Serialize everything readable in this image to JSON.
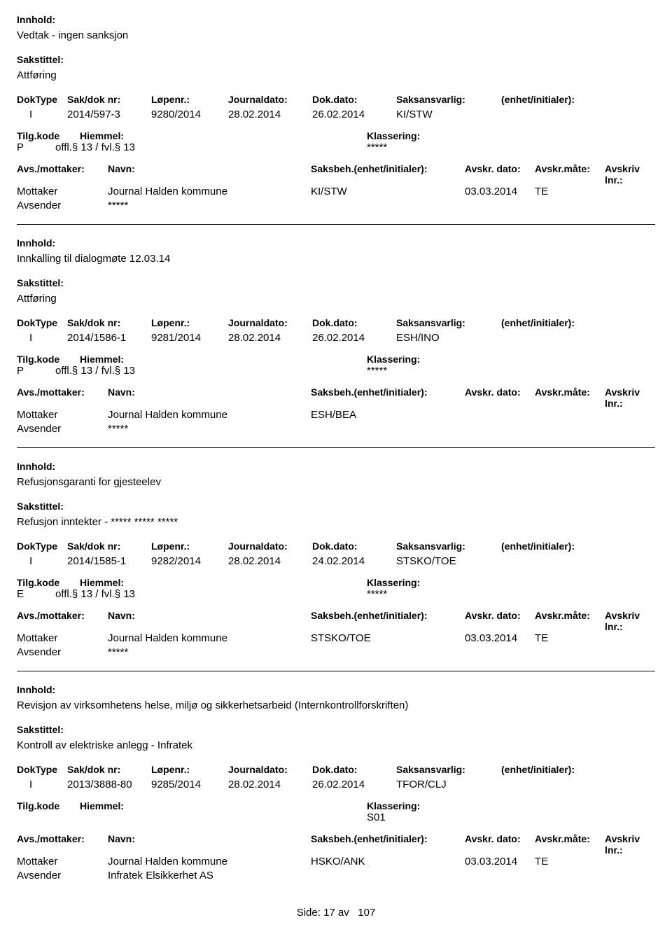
{
  "labels": {
    "innhold": "Innhold:",
    "sakstittel": "Sakstittel:",
    "doktype": "DokType",
    "saknr": "Sak/dok nr:",
    "lopenr": "Løpenr.:",
    "journaldato": "Journaldato:",
    "dokdato": "Dok.dato:",
    "saksansvarlig": "Saksansvarlig:",
    "enhet": "(enhet/initialer):",
    "tilgkode": "Tilg.kode",
    "hjemmel": "Hiemmel:",
    "klassering": "Klassering:",
    "avsmottaker": "Avs./mottaker:",
    "navn": "Navn:",
    "saksbeh": "Saksbeh.(enhet/initialer):",
    "avskrdato": "Avskr. dato:",
    "avskrmate": "Avskr.måte:",
    "avskrivlnr": "Avskriv lnr.:",
    "mottaker": "Mottaker",
    "avsender": "Avsender"
  },
  "footer": {
    "side": "Side:",
    "page": "17",
    "av": "av",
    "total": "107"
  },
  "records": [
    {
      "innhold": "Vedtak - ingen sanksjon",
      "sakstittel": "Attføring",
      "doktype": "I",
      "saknr": "2014/597-3",
      "lopenr": "9280/2014",
      "jdato": "28.02.2014",
      "ddato": "26.02.2014",
      "ansvarlig": "KI/STW",
      "tilgkode": "P",
      "hjemmel": "offl.§ 13 / fvl.§ 13",
      "klassering": "*****",
      "show_party_header": true,
      "parties": [
        {
          "role": "Mottaker",
          "navn": "Journal Halden kommune",
          "saksbeh": "KI/STW",
          "avdato": "03.03.2014",
          "avmate": "TE"
        },
        {
          "role": "Avsender",
          "navn": "*****",
          "saksbeh": "",
          "avdato": "",
          "avmate": ""
        }
      ]
    },
    {
      "innhold": "Innkalling til dialogmøte 12.03.14",
      "sakstittel": "Attføring",
      "doktype": "I",
      "saknr": "2014/1586-1",
      "lopenr": "9281/2014",
      "jdato": "28.02.2014",
      "ddato": "26.02.2014",
      "ansvarlig": "ESH/INO",
      "tilgkode": "P",
      "hjemmel": "offl.§ 13 / fvl.§ 13",
      "klassering": "*****",
      "show_party_header": true,
      "parties": [
        {
          "role": "Mottaker",
          "navn": "Journal Halden kommune",
          "saksbeh": "ESH/BEA",
          "avdato": "",
          "avmate": ""
        },
        {
          "role": "Avsender",
          "navn": "*****",
          "saksbeh": "",
          "avdato": "",
          "avmate": ""
        }
      ]
    },
    {
      "innhold": "Refusjonsgaranti for gjesteelev",
      "sakstittel": "Refusjon inntekter - ***** ***** *****",
      "doktype": "I",
      "saknr": "2014/1585-1",
      "lopenr": "9282/2014",
      "jdato": "28.02.2014",
      "ddato": "24.02.2014",
      "ansvarlig": "STSKO/TOE",
      "tilgkode": "E",
      "hjemmel": "offl.§ 13 / fvl.§ 13",
      "klassering": "*****",
      "show_party_header": true,
      "parties": [
        {
          "role": "Mottaker",
          "navn": "Journal Halden kommune",
          "saksbeh": "STSKO/TOE",
          "avdato": "03.03.2014",
          "avmate": "TE"
        },
        {
          "role": "Avsender",
          "navn": "*****",
          "saksbeh": "",
          "avdato": "",
          "avmate": ""
        }
      ]
    },
    {
      "innhold": "Revisjon av virksomhetens helse, miljø og sikkerhetsarbeid (Internkontrollforskriften)",
      "sakstittel": "Kontroll av elektriske anlegg - Infratek",
      "doktype": "I",
      "saknr": "2013/3888-80",
      "lopenr": "9285/2014",
      "jdato": "28.02.2014",
      "ddato": "26.02.2014",
      "ansvarlig": "TFOR/CLJ",
      "tilgkode": "",
      "hjemmel": "",
      "klassering": "S01",
      "show_party_header": true,
      "parties": [
        {
          "role": "Mottaker",
          "navn": "Journal Halden kommune",
          "saksbeh": "HSKO/ANK",
          "avdato": "03.03.2014",
          "avmate": "TE"
        },
        {
          "role": "Avsender",
          "navn": "Infratek Elsikkerhet AS",
          "saksbeh": "",
          "avdato": "",
          "avmate": ""
        }
      ]
    }
  ]
}
